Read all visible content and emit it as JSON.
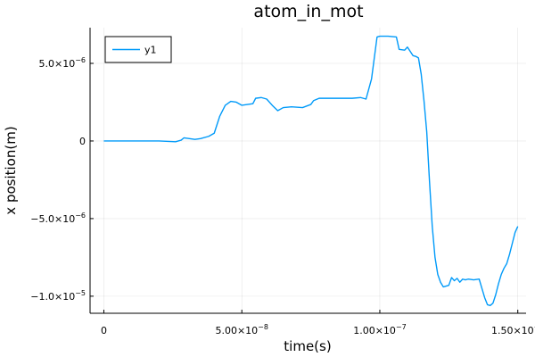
{
  "chart_data": {
    "type": "line",
    "title": "atom_in_mot",
    "xlabel": "time(s)",
    "ylabel": "x position(m)",
    "xlim": [
      -5e-09,
      1.53e-07
    ],
    "ylim": [
      -1.11e-05,
      7.3e-06
    ],
    "grid": true,
    "legend_position": "top-left",
    "x_ticks": [
      {
        "value": 0,
        "mantissa": "0",
        "exponent": ""
      },
      {
        "value": 5e-08,
        "mantissa": "5.00×10",
        "exponent": "−8"
      },
      {
        "value": 1e-07,
        "mantissa": "1.00×10",
        "exponent": "−7"
      },
      {
        "value": 1.5e-07,
        "mantissa": "1.50×10",
        "exponent": "−7"
      }
    ],
    "y_ticks": [
      {
        "value": 5e-06,
        "mantissa": "5.0×10",
        "exponent": "−6"
      },
      {
        "value": 0,
        "mantissa": "0",
        "exponent": ""
      },
      {
        "value": -5e-06,
        "mantissa": "−5.0×10",
        "exponent": "−6"
      },
      {
        "value": -1e-05,
        "mantissa": "−1.0×10",
        "exponent": "−5"
      }
    ],
    "series": [
      {
        "name": "y1",
        "color": "#009af9",
        "x": [
          0,
          1e-08,
          2e-08,
          2.6e-08,
          2.8e-08,
          2.9e-08,
          3.1e-08,
          3.3e-08,
          3.5e-08,
          3.8e-08,
          4e-08,
          4.2e-08,
          4.4e-08,
          4.6e-08,
          4.8e-08,
          5e-08,
          5.2e-08,
          5.4e-08,
          5.5e-08,
          5.7e-08,
          5.9e-08,
          6.1e-08,
          6.3e-08,
          6.5e-08,
          6.8e-08,
          7.2e-08,
          7.5e-08,
          7.6e-08,
          7.8e-08,
          8.2e-08,
          8.6e-08,
          9e-08,
          9.3e-08,
          9.5e-08,
          9.7e-08,
          9.9e-08,
          1e-07,
          1.03e-07,
          1.06e-07,
          1.07e-07,
          1.09e-07,
          1.1e-07,
          1.12e-07,
          1.13e-07,
          1.14e-07,
          1.15e-07,
          1.16e-07,
          1.17e-07,
          1.18e-07,
          1.19e-07,
          1.2e-07,
          1.21e-07,
          1.22e-07,
          1.23e-07,
          1.24e-07,
          1.25e-07,
          1.26e-07,
          1.27e-07,
          1.28e-07,
          1.29e-07,
          1.3e-07,
          1.31e-07,
          1.32e-07,
          1.34e-07,
          1.36e-07,
          1.37e-07,
          1.38e-07,
          1.39e-07,
          1.4e-07,
          1.41e-07,
          1.42e-07,
          1.43e-07,
          1.44e-07,
          1.45e-07,
          1.46e-07,
          1.47e-07,
          1.48e-07,
          1.49e-07,
          1.5e-07
        ],
        "y": [
          0,
          0,
          0,
          -5e-08,
          5e-08,
          2e-07,
          1.5e-07,
          1e-07,
          1.5e-07,
          3e-07,
          5e-07,
          1.6e-06,
          2.3e-06,
          2.55e-06,
          2.5e-06,
          2.3e-06,
          2.35e-06,
          2.4e-06,
          2.75e-06,
          2.8e-06,
          2.7e-06,
          2.3e-06,
          1.95e-06,
          2.15e-06,
          2.2e-06,
          2.15e-06,
          2.35e-06,
          2.6e-06,
          2.75e-06,
          2.75e-06,
          2.75e-06,
          2.75e-06,
          2.8e-06,
          2.7e-06,
          4e-06,
          6.7e-06,
          6.75e-06,
          6.75e-06,
          6.7e-06,
          5.9e-06,
          5.85e-06,
          6.05e-06,
          5.5e-06,
          5.45e-06,
          5.35e-06,
          4.3e-06,
          2.6e-06,
          6e-07,
          -2.6e-06,
          -5.5e-06,
          -7.5e-06,
          -8.6e-06,
          -9.1e-06,
          -9.4e-06,
          -9.35e-06,
          -9.3e-06,
          -8.8e-06,
          -9e-06,
          -8.85e-06,
          -9.1e-06,
          -8.9e-06,
          -8.95e-06,
          -8.9e-06,
          -8.95e-06,
          -8.9e-06,
          -9.5e-06,
          -1.01e-05,
          -1.055e-05,
          -1.06e-05,
          -1.045e-05,
          -9.9e-06,
          -9.2e-06,
          -8.6e-06,
          -8.2e-06,
          -7.9e-06,
          -7.3e-06,
          -6.6e-06,
          -5.9e-06,
          -5.5e-06
        ]
      }
    ]
  }
}
